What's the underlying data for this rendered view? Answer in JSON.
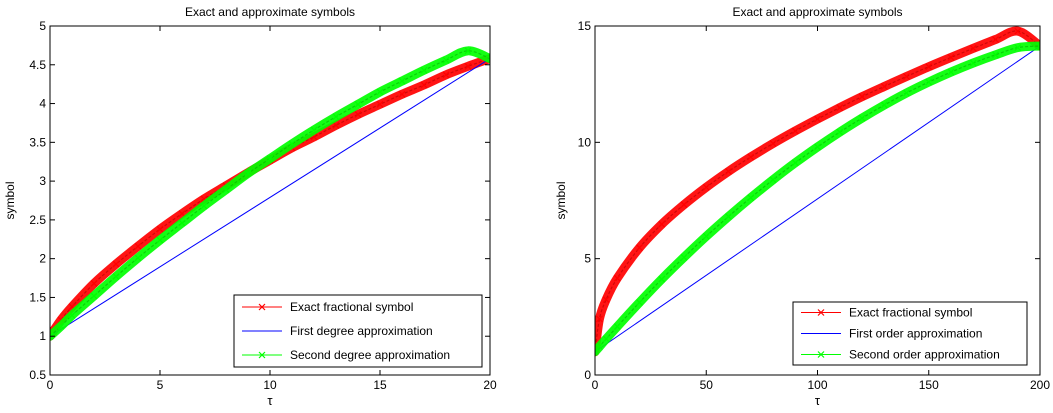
{
  "chart_data": [
    {
      "type": "line",
      "title": "Exact and approximate symbols",
      "xlabel": "τ",
      "ylabel": "symbol",
      "xlim": [
        0,
        20
      ],
      "ylim": [
        0.5,
        5
      ],
      "xticks": [
        "0",
        "5",
        "10",
        "15",
        "20"
      ],
      "yticks": [
        "0.5",
        "1",
        "1.5",
        "2",
        "2.5",
        "3",
        "3.5",
        "4",
        "4.5",
        "5"
      ],
      "legend_position": "bottom-right",
      "series": [
        {
          "name": "Exact fractional symbol",
          "color": "#ff0000",
          "marker": "x",
          "x": [
            0,
            0.5,
            1,
            2,
            3,
            4,
            5,
            6,
            7,
            8,
            9,
            10,
            11,
            12,
            13,
            14,
            15,
            16,
            17,
            18,
            19,
            20
          ],
          "y": [
            1.0,
            1.21,
            1.38,
            1.68,
            1.93,
            2.16,
            2.38,
            2.58,
            2.77,
            2.94,
            3.11,
            3.27,
            3.43,
            3.57,
            3.72,
            3.86,
            3.99,
            4.12,
            4.24,
            4.37,
            4.48,
            4.58
          ]
        },
        {
          "name": "First degree approximation",
          "color": "#0000ff",
          "marker": "none",
          "x": [
            0,
            20
          ],
          "y": [
            1.0,
            4.58
          ]
        },
        {
          "name": "Second degree approximation",
          "color": "#00ff00",
          "marker": "x",
          "x": [
            0,
            0.5,
            1,
            2,
            3,
            4,
            5,
            6,
            7,
            8,
            9,
            10,
            11,
            12,
            13,
            14,
            15,
            16,
            17,
            18,
            19,
            20
          ],
          "y": [
            1.0,
            1.13,
            1.27,
            1.52,
            1.77,
            2.01,
            2.24,
            2.46,
            2.68,
            2.89,
            3.1,
            3.29,
            3.48,
            3.66,
            3.83,
            3.99,
            4.15,
            4.29,
            4.43,
            4.56,
            4.68,
            4.58
          ]
        }
      ]
    },
    {
      "type": "line",
      "title": "Exact and approximate symbols",
      "xlabel": "τ",
      "ylabel": "symbol",
      "xlim": [
        0,
        200
      ],
      "ylim": [
        0,
        15
      ],
      "xticks": [
        "0",
        "50",
        "100",
        "150",
        "200"
      ],
      "yticks": [
        "0",
        "5",
        "10",
        "15"
      ],
      "legend_position": "bottom-right",
      "series": [
        {
          "name": "Exact fractional symbol",
          "color": "#ff0000",
          "marker": "x",
          "x": [
            0,
            2,
            5,
            10,
            20,
            30,
            40,
            50,
            60,
            70,
            80,
            90,
            100,
            110,
            120,
            130,
            140,
            150,
            160,
            170,
            180,
            190,
            200
          ],
          "y": [
            1.0,
            2.41,
            3.24,
            4.16,
            5.47,
            6.48,
            7.32,
            8.07,
            8.75,
            9.37,
            9.95,
            10.49,
            11.0,
            11.49,
            11.96,
            12.4,
            12.83,
            13.25,
            13.65,
            14.04,
            14.42,
            14.78,
            14.14
          ]
        },
        {
          "name": "First order approximation",
          "color": "#0000ff",
          "marker": "none",
          "x": [
            0,
            200
          ],
          "y": [
            1.0,
            14.14
          ]
        },
        {
          "name": "Second order approximation",
          "color": "#00ff00",
          "marker": "x",
          "x": [
            0,
            2,
            5,
            10,
            20,
            30,
            40,
            50,
            60,
            70,
            80,
            90,
            100,
            110,
            120,
            130,
            140,
            150,
            160,
            170,
            180,
            190,
            200
          ],
          "y": [
            1.0,
            1.22,
            1.55,
            2.08,
            3.12,
            4.12,
            5.06,
            5.96,
            6.81,
            7.62,
            8.39,
            9.12,
            9.8,
            10.44,
            11.04,
            11.6,
            12.12,
            12.59,
            13.02,
            13.41,
            13.76,
            14.07,
            14.14
          ]
        }
      ]
    }
  ]
}
